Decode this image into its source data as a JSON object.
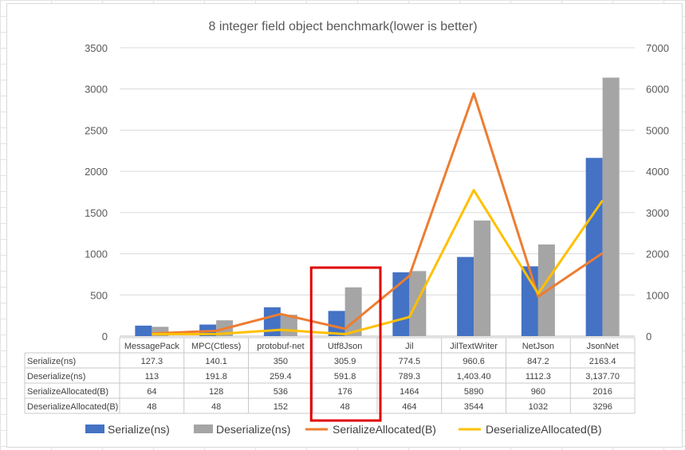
{
  "chart_data": {
    "type": "bar",
    "title": "8 integer field object benchmark(lower is better)",
    "categories": [
      "MessagePack",
      "MPC(Ctless)",
      "protobuf-net",
      "Utf8Json",
      "Jil",
      "JilTextWriter",
      "NetJson",
      "JsonNet"
    ],
    "series": [
      {
        "name": "Serialize(ns)",
        "kind": "bar",
        "axis": "left",
        "color": "#4472c4",
        "values": [
          127.3,
          140.1,
          350,
          305.9,
          774.5,
          960.6,
          847.2,
          2163.4
        ],
        "labels": [
          "127.3",
          "140.1",
          "350",
          "305.9",
          "774.5",
          "960.6",
          "847.2",
          "2163.4"
        ]
      },
      {
        "name": "Deserialize(ns)",
        "kind": "bar",
        "axis": "left",
        "color": "#a5a5a5",
        "values": [
          113,
          191.8,
          259.4,
          591.8,
          789.3,
          1403.4,
          1112.3,
          3137.7
        ],
        "labels": [
          "113",
          "191.8",
          "259.4",
          "591.8",
          "789.3",
          "1,403.40",
          "1112.3",
          "3,137.70"
        ]
      },
      {
        "name": "SerializeAllocated(B)",
        "kind": "line",
        "axis": "right",
        "color": "#ed7d31",
        "values": [
          64,
          128,
          536,
          176,
          1464,
          5890,
          960,
          2016
        ],
        "labels": [
          "64",
          "128",
          "536",
          "176",
          "1464",
          "5890",
          "960",
          "2016"
        ]
      },
      {
        "name": "DeserializeAllocated(B)",
        "kind": "line",
        "axis": "right",
        "color": "#ffc000",
        "values": [
          48,
          48,
          152,
          48,
          464,
          3544,
          1032,
          3296
        ],
        "labels": [
          "48",
          "48",
          "152",
          "48",
          "464",
          "3544",
          "1032",
          "3296"
        ]
      }
    ],
    "y_left": {
      "min": 0,
      "max": 3500,
      "step": 500,
      "ticks": [
        "0",
        "500",
        "1000",
        "1500",
        "2000",
        "2500",
        "3000",
        "3500"
      ]
    },
    "y_right": {
      "min": 0,
      "max": 7000,
      "step": 1000,
      "ticks": [
        "0",
        "1000",
        "2000",
        "3000",
        "4000",
        "5000",
        "6000",
        "7000"
      ]
    },
    "data_table": true,
    "legend_position": "bottom",
    "highlight": {
      "category": "Utf8Json",
      "color": "#e00000"
    }
  }
}
